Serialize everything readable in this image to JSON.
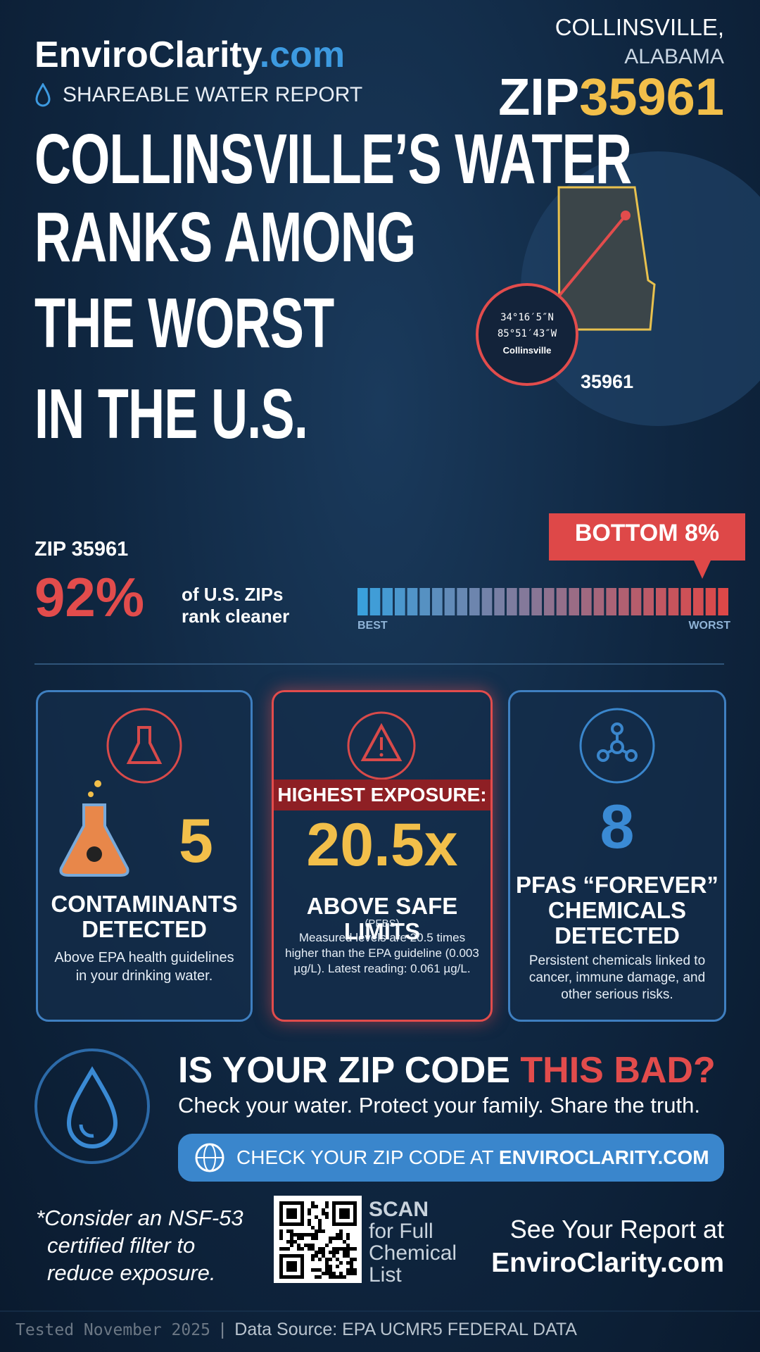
{
  "header": {
    "brand_main": "EnviroClarity",
    "brand_tld": ".com",
    "subtitle": "SHAREABLE WATER REPORT",
    "city": "COLLINSVILLE,",
    "state": "ALABAMA",
    "zip_prefix": "ZIP",
    "zip": "35961"
  },
  "headline": {
    "lines": [
      "COLLINSVILLE’S WATER",
      "RANKS AMONG",
      "THE WORST",
      "IN THE U.S."
    ]
  },
  "map": {
    "lat": "34°16′5″N",
    "lon": "85°51′43″W",
    "place": "Collinsville",
    "zip_label": "35961"
  },
  "rank": {
    "zip_label": "ZIP 35961",
    "percent": "92%",
    "text_lines": [
      "of U.S. ZIPs",
      "rank cleaner"
    ],
    "badge": "BOTTOM 8%",
    "scale_best": "BEST",
    "scale_worst": "WORST"
  },
  "cards": [
    {
      "number": "5",
      "title_lines": [
        "CONTAMINANTS",
        "DETECTED"
      ],
      "desc": "Above EPA health guidelines in your drinking water."
    },
    {
      "banner": "HIGHEST EXPOSURE:",
      "number": "20.5x",
      "title": "ABOVE SAFE LIMITS",
      "sub": "(PFBS)",
      "desc": "Measured levels are 20.5 times higher than the EPA guideline (0.003 µg/L). Latest reading: 0.061 µg/L."
    },
    {
      "number": "8",
      "title_lines": [
        "PFAS “FOREVER”",
        "CHEMICALS",
        "DETECTED"
      ],
      "desc": "Persistent chemicals linked to cancer, immune damage, and other serious risks."
    }
  ],
  "cta": {
    "heading_main": "IS YOUR ZIP CODE",
    "heading_highlight": "THIS BAD?",
    "tagline": "Check your water. Protect your family. Share the truth.",
    "button_prefix": "CHECK YOUR ZIP CODE AT",
    "button_site": "ENVIROCLARITY.COM"
  },
  "footer": {
    "note_lines": [
      "*Consider an NSF-53",
      "certified filter to",
      "reduce exposure."
    ],
    "scan": "SCAN",
    "scan_lines": [
      "for Full",
      "Chemical",
      "List"
    ],
    "report_lines": [
      "See Your Report at",
      "EnviroClarity.com"
    ],
    "tested": "Tested November 2025",
    "separator": "|",
    "source": "Data Source: EPA UCMR5 FEDERAL DATA"
  }
}
